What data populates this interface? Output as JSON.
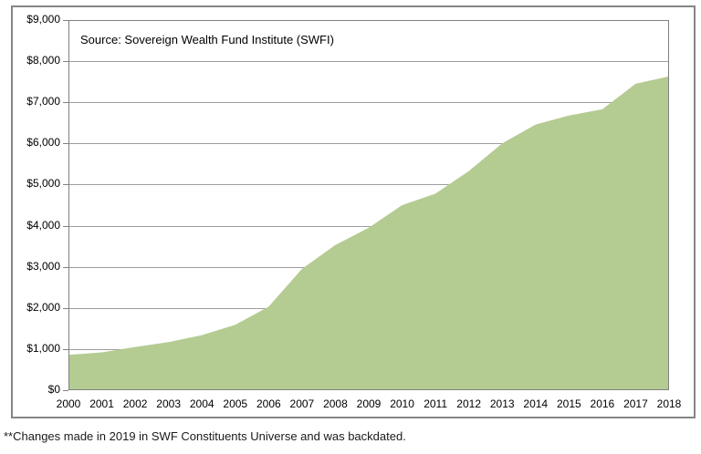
{
  "chart_data": {
    "type": "area",
    "title": "",
    "source_note": "Source: Sovereign Wealth Fund Institute (SWFI)",
    "footnote": "**Changes made in 2019 in SWF Constituents Universe and was backdated.",
    "categories": [
      2000,
      2001,
      2002,
      2003,
      2004,
      2005,
      2006,
      2007,
      2008,
      2009,
      2010,
      2011,
      2012,
      2013,
      2014,
      2015,
      2016,
      2017,
      2018
    ],
    "values": [
      860,
      920,
      1050,
      1170,
      1340,
      1590,
      2030,
      2950,
      3530,
      3950,
      4500,
      4780,
      5330,
      6000,
      6460,
      6680,
      6830,
      7450,
      7630
    ],
    "xlabel": "",
    "ylabel": "",
    "ylim": [
      0,
      9000
    ],
    "ytick_step": 1000,
    "ytick_labels_bottom_to_top": [
      "$0",
      "$1,000",
      "$2,000",
      "$3,000",
      "$4,000",
      "$5,000",
      "$6,000",
      "$7,000",
      "$8,000",
      "$9,000"
    ],
    "grid": "horizontal",
    "legend_position": "none",
    "colors": {
      "area_fill": "#b4cb92",
      "gridline": "#9d9d9d",
      "plot_border": "#808080",
      "frame_border": "#858585",
      "text": "#000000"
    }
  }
}
